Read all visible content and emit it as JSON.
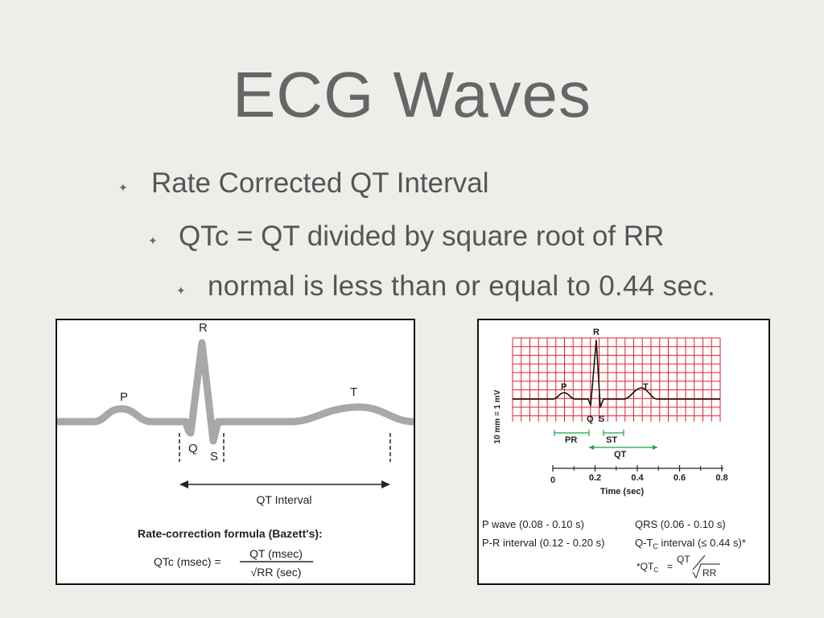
{
  "slide": {
    "title": "ECG Waves",
    "bullets": [
      {
        "text": "Rate Corrected QT Interval",
        "icon": "star-bullet-icon"
      },
      {
        "text": "QTc = QT divided by square root of RR",
        "icon": "star-bullet-icon"
      },
      {
        "text": "normal is less than or equal to 0.44 sec.",
        "icon": "star-bullet-icon"
      }
    ]
  },
  "left_figure": {
    "wave_labels": {
      "p": "P",
      "q": "Q",
      "r": "R",
      "s": "S",
      "t": "T"
    },
    "interval_label": "QT Interval",
    "formula_title": "Rate-correction formula (Bazett's):",
    "formula_lhs": "QTc (msec) =",
    "formula_numerator": "QT (msec)",
    "formula_denominator": "√RR (sec)"
  },
  "right_figure": {
    "grid_color": "#e0222a",
    "y_axis_label": "10 mm = 1 mV",
    "wave_labels": {
      "p": "P",
      "q": "Q",
      "r": "R",
      "s": "S",
      "t": "T"
    },
    "segments": {
      "pr": "PR",
      "st": "ST",
      "qt": "QT"
    },
    "time_ticks": [
      "0",
      "0.2",
      "0.4",
      "0.6",
      "0.8"
    ],
    "x_axis_label": "Time (sec)",
    "legend": [
      {
        "left": "P wave (0.08 - 0.10 s)",
        "right": "QRS (0.06 - 0.10 s)"
      },
      {
        "left": "P-R interval (0.12 - 0.20 s)",
        "right_prefix": "Q-T",
        "right_sub": "C",
        "right_suffix": " interval (≤ 0.44 s)*"
      }
    ],
    "footnote_prefix": "*QT",
    "footnote_sub": "C",
    "footnote_eq": "=",
    "footnote_num": "QT",
    "footnote_den": "RR"
  }
}
